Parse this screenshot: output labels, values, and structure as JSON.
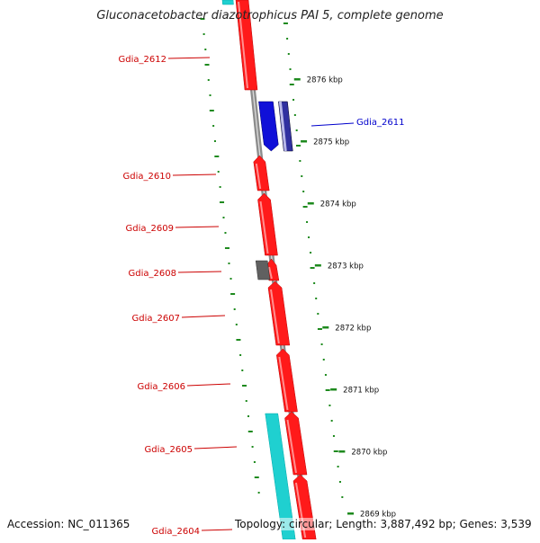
{
  "title": "Gluconacetobacter diazotrophicus PAI 5, complete genome",
  "accession": "Accession: NC_011365",
  "topology": "Topology: circular; Length: 3,887,492 bp; Genes: 3,539",
  "colors": {
    "forward_gene": "#ff1a1a",
    "reverse_gene": "#1010d8",
    "pseudo_gene": "#606060",
    "rna_feature": "#1fd0d0",
    "backbone": "#8c8c8c",
    "gc_ticks": "#1e8a1e",
    "label_red": "#cc0000",
    "label_blue": "#0000cc"
  },
  "scale_ticks": [
    {
      "label": "2876 kbp",
      "value": 2876
    },
    {
      "label": "2875 kbp",
      "value": 2875
    },
    {
      "label": "2874 kbp",
      "value": 2874
    },
    {
      "label": "2873 kbp",
      "value": 2873
    },
    {
      "label": "2872 kbp",
      "value": 2872
    },
    {
      "label": "2871 kbp",
      "value": 2871
    },
    {
      "label": "2870 kbp",
      "value": 2870
    },
    {
      "label": "2869 kbp",
      "value": 2869
    }
  ],
  "genes": [
    {
      "id": "gdia-2612",
      "label": "Gdia_2612",
      "strand": "forward"
    },
    {
      "id": "gdia-2611",
      "label": "Gdia_2611",
      "strand": "reverse"
    },
    {
      "id": "gdia-2610",
      "label": "Gdia_2610",
      "strand": "forward"
    },
    {
      "id": "gdia-2609",
      "label": "Gdia_2609",
      "strand": "forward"
    },
    {
      "id": "gdia-2608",
      "label": "Gdia_2608",
      "strand": "pseudo"
    },
    {
      "id": "gdia-2607",
      "label": "Gdia_2607",
      "strand": "forward"
    },
    {
      "id": "gdia-2606",
      "label": "Gdia_2606",
      "strand": "forward"
    },
    {
      "id": "gdia-2605",
      "label": "Gdia_2605",
      "strand": "forward"
    },
    {
      "id": "gdia-2604",
      "label": "Gdia_2604",
      "strand": "forward"
    }
  ]
}
